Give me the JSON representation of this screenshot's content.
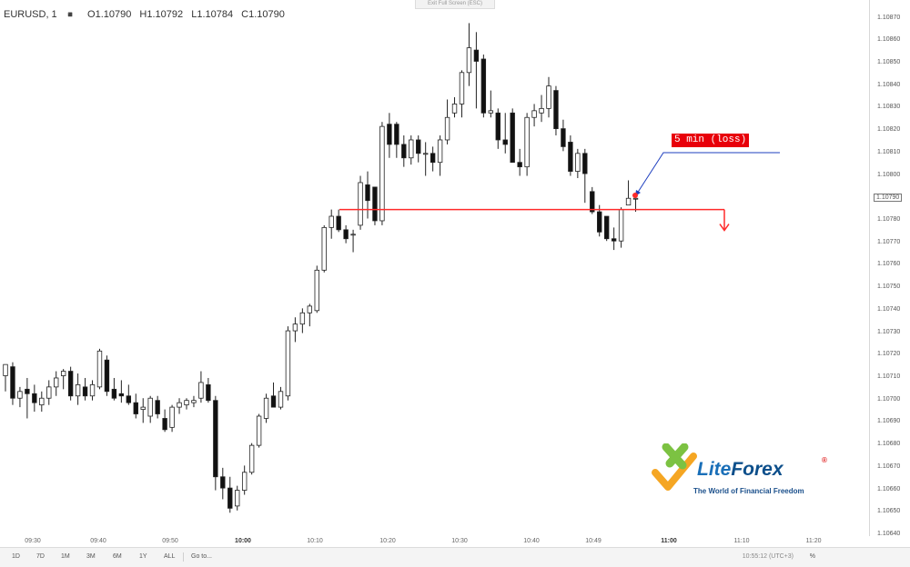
{
  "header": {
    "symbol": "EURUSD, 1",
    "dots_icon": "more-dots-icon",
    "open": "O1.10790",
    "high": "H1.10792",
    "low": "L1.10784",
    "close": "C1.10790",
    "exit_fullscreen": "Exit Full Screen (ESC)"
  },
  "price_axis": {
    "labels": [
      "1.10870",
      "1.10860",
      "1.10850",
      "1.10840",
      "1.10830",
      "1.10820",
      "1.10810",
      "1.10800",
      "1.10790",
      "1.10780",
      "1.10770",
      "1.10760",
      "1.10750",
      "1.10740",
      "1.10730",
      "1.10720",
      "1.10710",
      "1.10700",
      "1.10690",
      "1.10680",
      "1.10670",
      "1.10660",
      "1.10650",
      "1.10640"
    ],
    "current": "1.10790"
  },
  "time_axis": {
    "labels": [
      {
        "text": "09:30",
        "bold": false
      },
      {
        "text": "09:40",
        "bold": false
      },
      {
        "text": "09:50",
        "bold": false
      },
      {
        "text": "10:00",
        "bold": true
      },
      {
        "text": "10:10",
        "bold": false
      },
      {
        "text": "10:20",
        "bold": false
      },
      {
        "text": "10:30",
        "bold": false
      },
      {
        "text": "10:40",
        "bold": false
      },
      {
        "text": "10:49",
        "bold": false
      },
      {
        "text": "11:00",
        "bold": true
      },
      {
        "text": "11:10",
        "bold": false
      },
      {
        "text": "11:20",
        "bold": false
      }
    ]
  },
  "bottom_bar": {
    "timeframes": [
      "1D",
      "7D",
      "1M",
      "3M",
      "6M",
      "1Y",
      "ALL"
    ],
    "goto": "Go to...",
    "clock": "10:55:12 (UTC+3)",
    "percent": "%"
  },
  "annotation": {
    "label": "5 min (loss)",
    "level_price": 1.10785,
    "line_color": "#ff2a2a",
    "callout_color": "#e8000a",
    "arrow_color": "#1e3fbf"
  },
  "logo": {
    "name_part1": "Lite",
    "name_part2": "Forex",
    "registered": "®",
    "tagline": "The World of Financial Freedom",
    "green": "#7cc242",
    "orange": "#f5a623",
    "blue": "#1a6fb8"
  },
  "chart_data": {
    "type": "candlestick",
    "symbol": "EURUSD",
    "interval": "1",
    "ylim": [
      1.1064,
      1.10875
    ],
    "candles": [
      {
        "o": 1.10711,
        "h": 1.10716,
        "l": 1.10704,
        "c": 1.10716
      },
      {
        "o": 1.10715,
        "h": 1.10717,
        "l": 1.10698,
        "c": 1.10701
      },
      {
        "o": 1.10701,
        "h": 1.10706,
        "l": 1.10697,
        "c": 1.10704
      },
      {
        "o": 1.10705,
        "h": 1.1071,
        "l": 1.10692,
        "c": 1.10703
      },
      {
        "o": 1.10703,
        "h": 1.10707,
        "l": 1.10695,
        "c": 1.10699
      },
      {
        "o": 1.10698,
        "h": 1.10704,
        "l": 1.10695,
        "c": 1.10701
      },
      {
        "o": 1.10701,
        "h": 1.10709,
        "l": 1.10698,
        "c": 1.10706
      },
      {
        "o": 1.10706,
        "h": 1.10713,
        "l": 1.10702,
        "c": 1.1071
      },
      {
        "o": 1.10711,
        "h": 1.10714,
        "l": 1.10705,
        "c": 1.10713
      },
      {
        "o": 1.10713,
        "h": 1.10715,
        "l": 1.107,
        "c": 1.10702
      },
      {
        "o": 1.10702,
        "h": 1.10712,
        "l": 1.10698,
        "c": 1.10707
      },
      {
        "o": 1.10706,
        "h": 1.1071,
        "l": 1.107,
        "c": 1.10702
      },
      {
        "o": 1.10702,
        "h": 1.10709,
        "l": 1.107,
        "c": 1.10707
      },
      {
        "o": 1.10706,
        "h": 1.10723,
        "l": 1.10705,
        "c": 1.10722
      },
      {
        "o": 1.10718,
        "h": 1.1072,
        "l": 1.10702,
        "c": 1.10704
      },
      {
        "o": 1.10705,
        "h": 1.1071,
        "l": 1.107,
        "c": 1.10701
      },
      {
        "o": 1.10703,
        "h": 1.10709,
        "l": 1.10699,
        "c": 1.10702
      },
      {
        "o": 1.10702,
        "h": 1.10707,
        "l": 1.10698,
        "c": 1.10699
      },
      {
        "o": 1.10699,
        "h": 1.10703,
        "l": 1.10692,
        "c": 1.10694
      },
      {
        "o": 1.10696,
        "h": 1.10701,
        "l": 1.1069,
        "c": 1.10697
      },
      {
        "o": 1.10693,
        "h": 1.10702,
        "l": 1.1069,
        "c": 1.10701
      },
      {
        "o": 1.107,
        "h": 1.10702,
        "l": 1.10692,
        "c": 1.10694
      },
      {
        "o": 1.10692,
        "h": 1.10696,
        "l": 1.10686,
        "c": 1.10687
      },
      {
        "o": 1.10688,
        "h": 1.10698,
        "l": 1.10686,
        "c": 1.10697
      },
      {
        "o": 1.10697,
        "h": 1.10701,
        "l": 1.10694,
        "c": 1.10699
      },
      {
        "o": 1.10698,
        "h": 1.10701,
        "l": 1.10696,
        "c": 1.107
      },
      {
        "o": 1.10699,
        "h": 1.10702,
        "l": 1.10697,
        "c": 1.107
      },
      {
        "o": 1.10701,
        "h": 1.10713,
        "l": 1.10699,
        "c": 1.10708
      },
      {
        "o": 1.10707,
        "h": 1.1071,
        "l": 1.10699,
        "c": 1.107
      },
      {
        "o": 1.107,
        "h": 1.10702,
        "l": 1.1066,
        "c": 1.10666
      },
      {
        "o": 1.10666,
        "h": 1.1067,
        "l": 1.10656,
        "c": 1.10661
      },
      {
        "o": 1.10661,
        "h": 1.10666,
        "l": 1.1065,
        "c": 1.10652
      },
      {
        "o": 1.10653,
        "h": 1.10662,
        "l": 1.10651,
        "c": 1.1066
      },
      {
        "o": 1.1066,
        "h": 1.10671,
        "l": 1.10658,
        "c": 1.10668
      },
      {
        "o": 1.10668,
        "h": 1.10681,
        "l": 1.10667,
        "c": 1.1068
      },
      {
        "o": 1.1068,
        "h": 1.10694,
        "l": 1.10679,
        "c": 1.10693
      },
      {
        "o": 1.10692,
        "h": 1.10703,
        "l": 1.1069,
        "c": 1.10701
      },
      {
        "o": 1.10702,
        "h": 1.10708,
        "l": 1.10698,
        "c": 1.10697
      },
      {
        "o": 1.10697,
        "h": 1.10706,
        "l": 1.10696,
        "c": 1.10704
      },
      {
        "o": 1.10702,
        "h": 1.10733,
        "l": 1.107,
        "c": 1.10731
      },
      {
        "o": 1.10731,
        "h": 1.10737,
        "l": 1.10726,
        "c": 1.10734
      },
      {
        "o": 1.10734,
        "h": 1.10741,
        "l": 1.1073,
        "c": 1.10739
      },
      {
        "o": 1.10739,
        "h": 1.10743,
        "l": 1.10733,
        "c": 1.10742
      },
      {
        "o": 1.1074,
        "h": 1.1076,
        "l": 1.10739,
        "c": 1.10758
      },
      {
        "o": 1.10758,
        "h": 1.10778,
        "l": 1.10757,
        "c": 1.10777
      },
      {
        "o": 1.10777,
        "h": 1.10785,
        "l": 1.10772,
        "c": 1.10782
      },
      {
        "o": 1.10782,
        "h": 1.10785,
        "l": 1.10775,
        "c": 1.10776
      },
      {
        "o": 1.10776,
        "h": 1.10778,
        "l": 1.1077,
        "c": 1.10772
      },
      {
        "o": 1.10774,
        "h": 1.10776,
        "l": 1.10766,
        "c": 1.10774
      },
      {
        "o": 1.10778,
        "h": 1.108,
        "l": 1.10776,
        "c": 1.10797
      },
      {
        "o": 1.10796,
        "h": 1.10802,
        "l": 1.10781,
        "c": 1.10789
      },
      {
        "o": 1.10795,
        "h": 1.10795,
        "l": 1.10778,
        "c": 1.1078
      },
      {
        "o": 1.1078,
        "h": 1.10824,
        "l": 1.10778,
        "c": 1.10822
      },
      {
        "o": 1.10823,
        "h": 1.10828,
        "l": 1.10808,
        "c": 1.10814
      },
      {
        "o": 1.10823,
        "h": 1.10824,
        "l": 1.10808,
        "c": 1.10814
      },
      {
        "o": 1.10814,
        "h": 1.10818,
        "l": 1.10804,
        "c": 1.10808
      },
      {
        "o": 1.10808,
        "h": 1.10818,
        "l": 1.10805,
        "c": 1.10816
      },
      {
        "o": 1.10816,
        "h": 1.10818,
        "l": 1.10806,
        "c": 1.1081
      },
      {
        "o": 1.1081,
        "h": 1.10815,
        "l": 1.108,
        "c": 1.1081
      },
      {
        "o": 1.1081,
        "h": 1.10813,
        "l": 1.10802,
        "c": 1.10806
      },
      {
        "o": 1.10806,
        "h": 1.10818,
        "l": 1.108,
        "c": 1.10816
      },
      {
        "o": 1.10816,
        "h": 1.10834,
        "l": 1.10814,
        "c": 1.10826
      },
      {
        "o": 1.10828,
        "h": 1.10835,
        "l": 1.10826,
        "c": 1.10832
      },
      {
        "o": 1.10832,
        "h": 1.10847,
        "l": 1.10826,
        "c": 1.10846
      },
      {
        "o": 1.10846,
        "h": 1.10868,
        "l": 1.1084,
        "c": 1.10857
      },
      {
        "o": 1.10856,
        "h": 1.10864,
        "l": 1.1083,
        "c": 1.10851
      },
      {
        "o": 1.10852,
        "h": 1.10854,
        "l": 1.10826,
        "c": 1.10828
      },
      {
        "o": 1.10828,
        "h": 1.10838,
        "l": 1.10826,
        "c": 1.10829
      },
      {
        "o": 1.10828,
        "h": 1.1083,
        "l": 1.10812,
        "c": 1.10816
      },
      {
        "o": 1.10816,
        "h": 1.10828,
        "l": 1.1081,
        "c": 1.10814
      },
      {
        "o": 1.10828,
        "h": 1.1083,
        "l": 1.10808,
        "c": 1.10806
      },
      {
        "o": 1.10806,
        "h": 1.10812,
        "l": 1.108,
        "c": 1.10804
      },
      {
        "o": 1.10804,
        "h": 1.10828,
        "l": 1.108,
        "c": 1.10826
      },
      {
        "o": 1.10826,
        "h": 1.10832,
        "l": 1.10822,
        "c": 1.10829
      },
      {
        "o": 1.10828,
        "h": 1.10836,
        "l": 1.10824,
        "c": 1.1083
      },
      {
        "o": 1.1083,
        "h": 1.10844,
        "l": 1.10826,
        "c": 1.1084
      },
      {
        "o": 1.10838,
        "h": 1.1084,
        "l": 1.10818,
        "c": 1.10821
      },
      {
        "o": 1.10821,
        "h": 1.10825,
        "l": 1.10811,
        "c": 1.10813
      },
      {
        "o": 1.10815,
        "h": 1.10818,
        "l": 1.108,
        "c": 1.10802
      },
      {
        "o": 1.10802,
        "h": 1.10812,
        "l": 1.10799,
        "c": 1.1081
      },
      {
        "o": 1.1081,
        "h": 1.10812,
        "l": 1.10788,
        "c": 1.10801
      },
      {
        "o": 1.10793,
        "h": 1.10795,
        "l": 1.10783,
        "c": 1.10784
      },
      {
        "o": 1.10784,
        "h": 1.10787,
        "l": 1.10773,
        "c": 1.10775
      },
      {
        "o": 1.10782,
        "h": 1.10782,
        "l": 1.10771,
        "c": 1.10772
      },
      {
        "o": 1.10772,
        "h": 1.10777,
        "l": 1.10767,
        "c": 1.10771
      },
      {
        "o": 1.10771,
        "h": 1.10786,
        "l": 1.10768,
        "c": 1.10785
      },
      {
        "o": 1.10787,
        "h": 1.10798,
        "l": 1.10787,
        "c": 1.1079
      },
      {
        "o": 1.1079,
        "h": 1.10792,
        "l": 1.10784,
        "c": 1.1079
      }
    ]
  }
}
